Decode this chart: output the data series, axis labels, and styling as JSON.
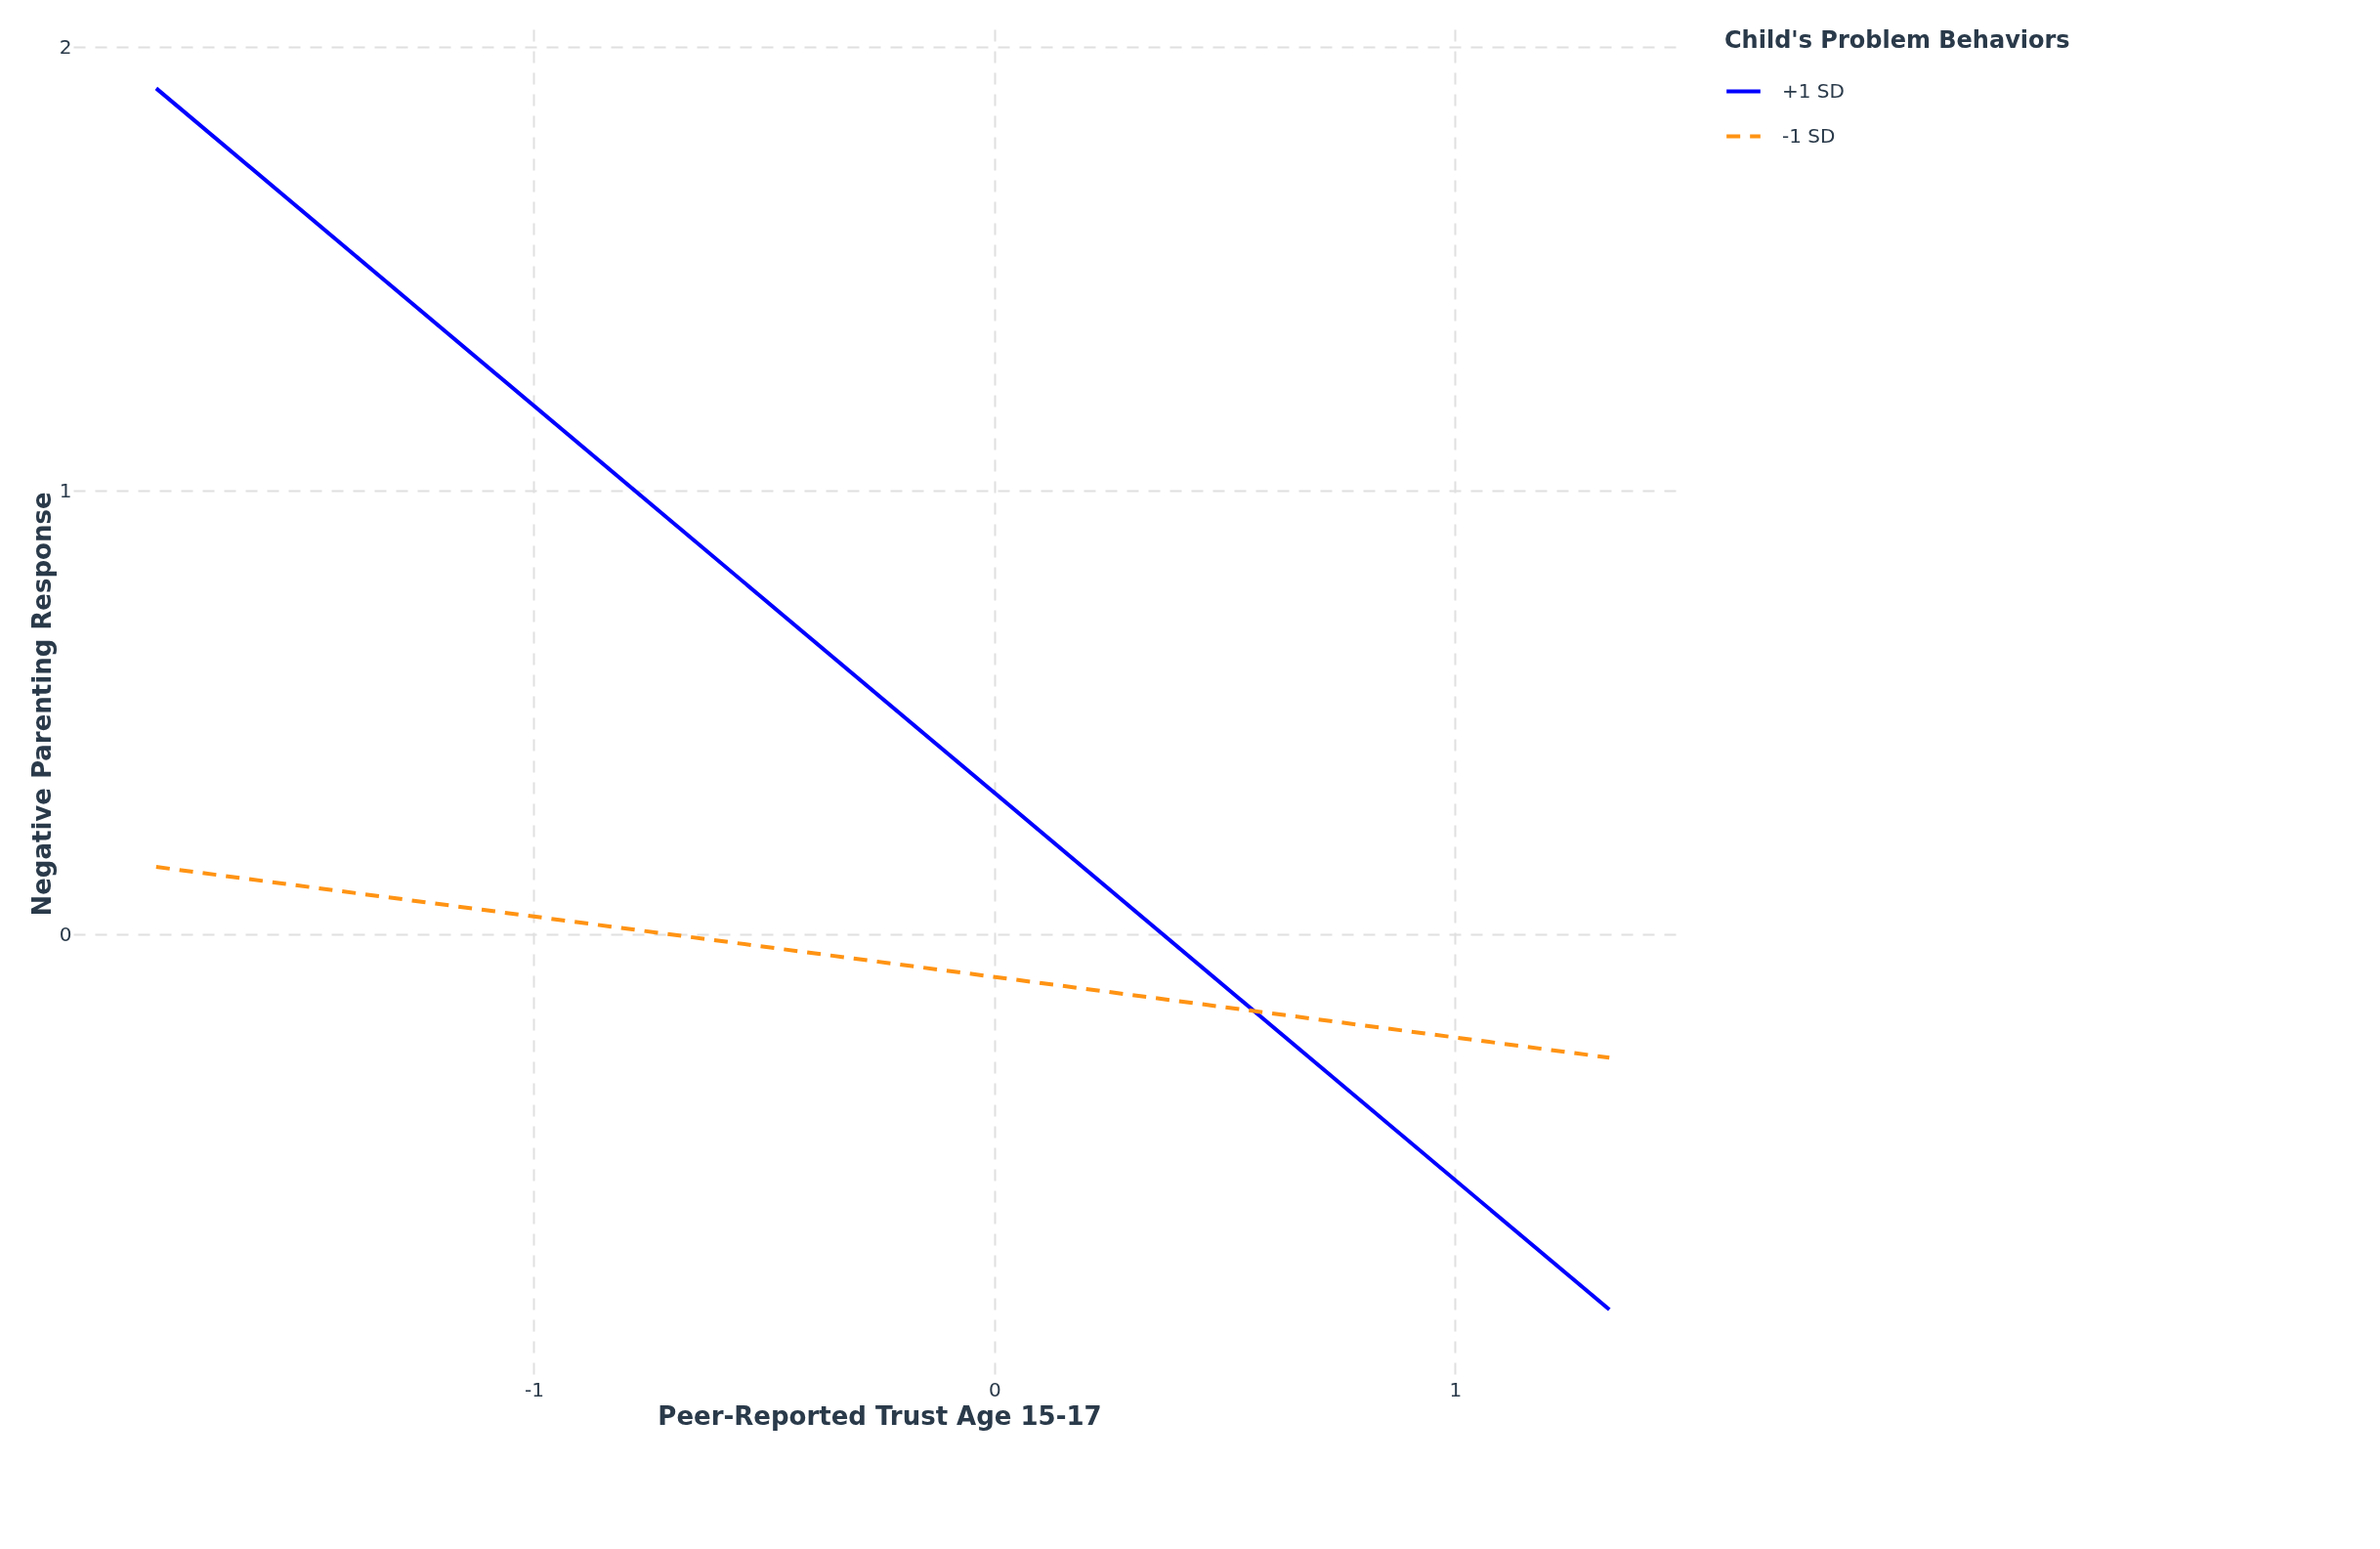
{
  "chart_data": {
    "type": "line",
    "xlabel": "Peer-Reported Trust Age 15-17",
    "ylabel": "Negative Parenting Response",
    "legend_title": "Child's Problem Behaviors",
    "legend": "right",
    "grid": true,
    "series": [
      {
        "name": "+1 SD",
        "color": "#0000ff",
        "values": [
          1.907,
          -0.846
        ],
        "line_style": "solid"
      },
      {
        "name": "-1 SD",
        "color": "#ff9313",
        "values": [
          0.152,
          -0.278
        ],
        "line_style": "dashed"
      }
    ],
    "x": [
      -1.82,
      1.335
    ],
    "xlim": [
      -2.0,
      1.5
    ],
    "ylim": [
      -1.0,
      2.04
    ],
    "xticks": [
      -1,
      0,
      1
    ],
    "yticks": [
      0,
      1,
      2
    ]
  }
}
